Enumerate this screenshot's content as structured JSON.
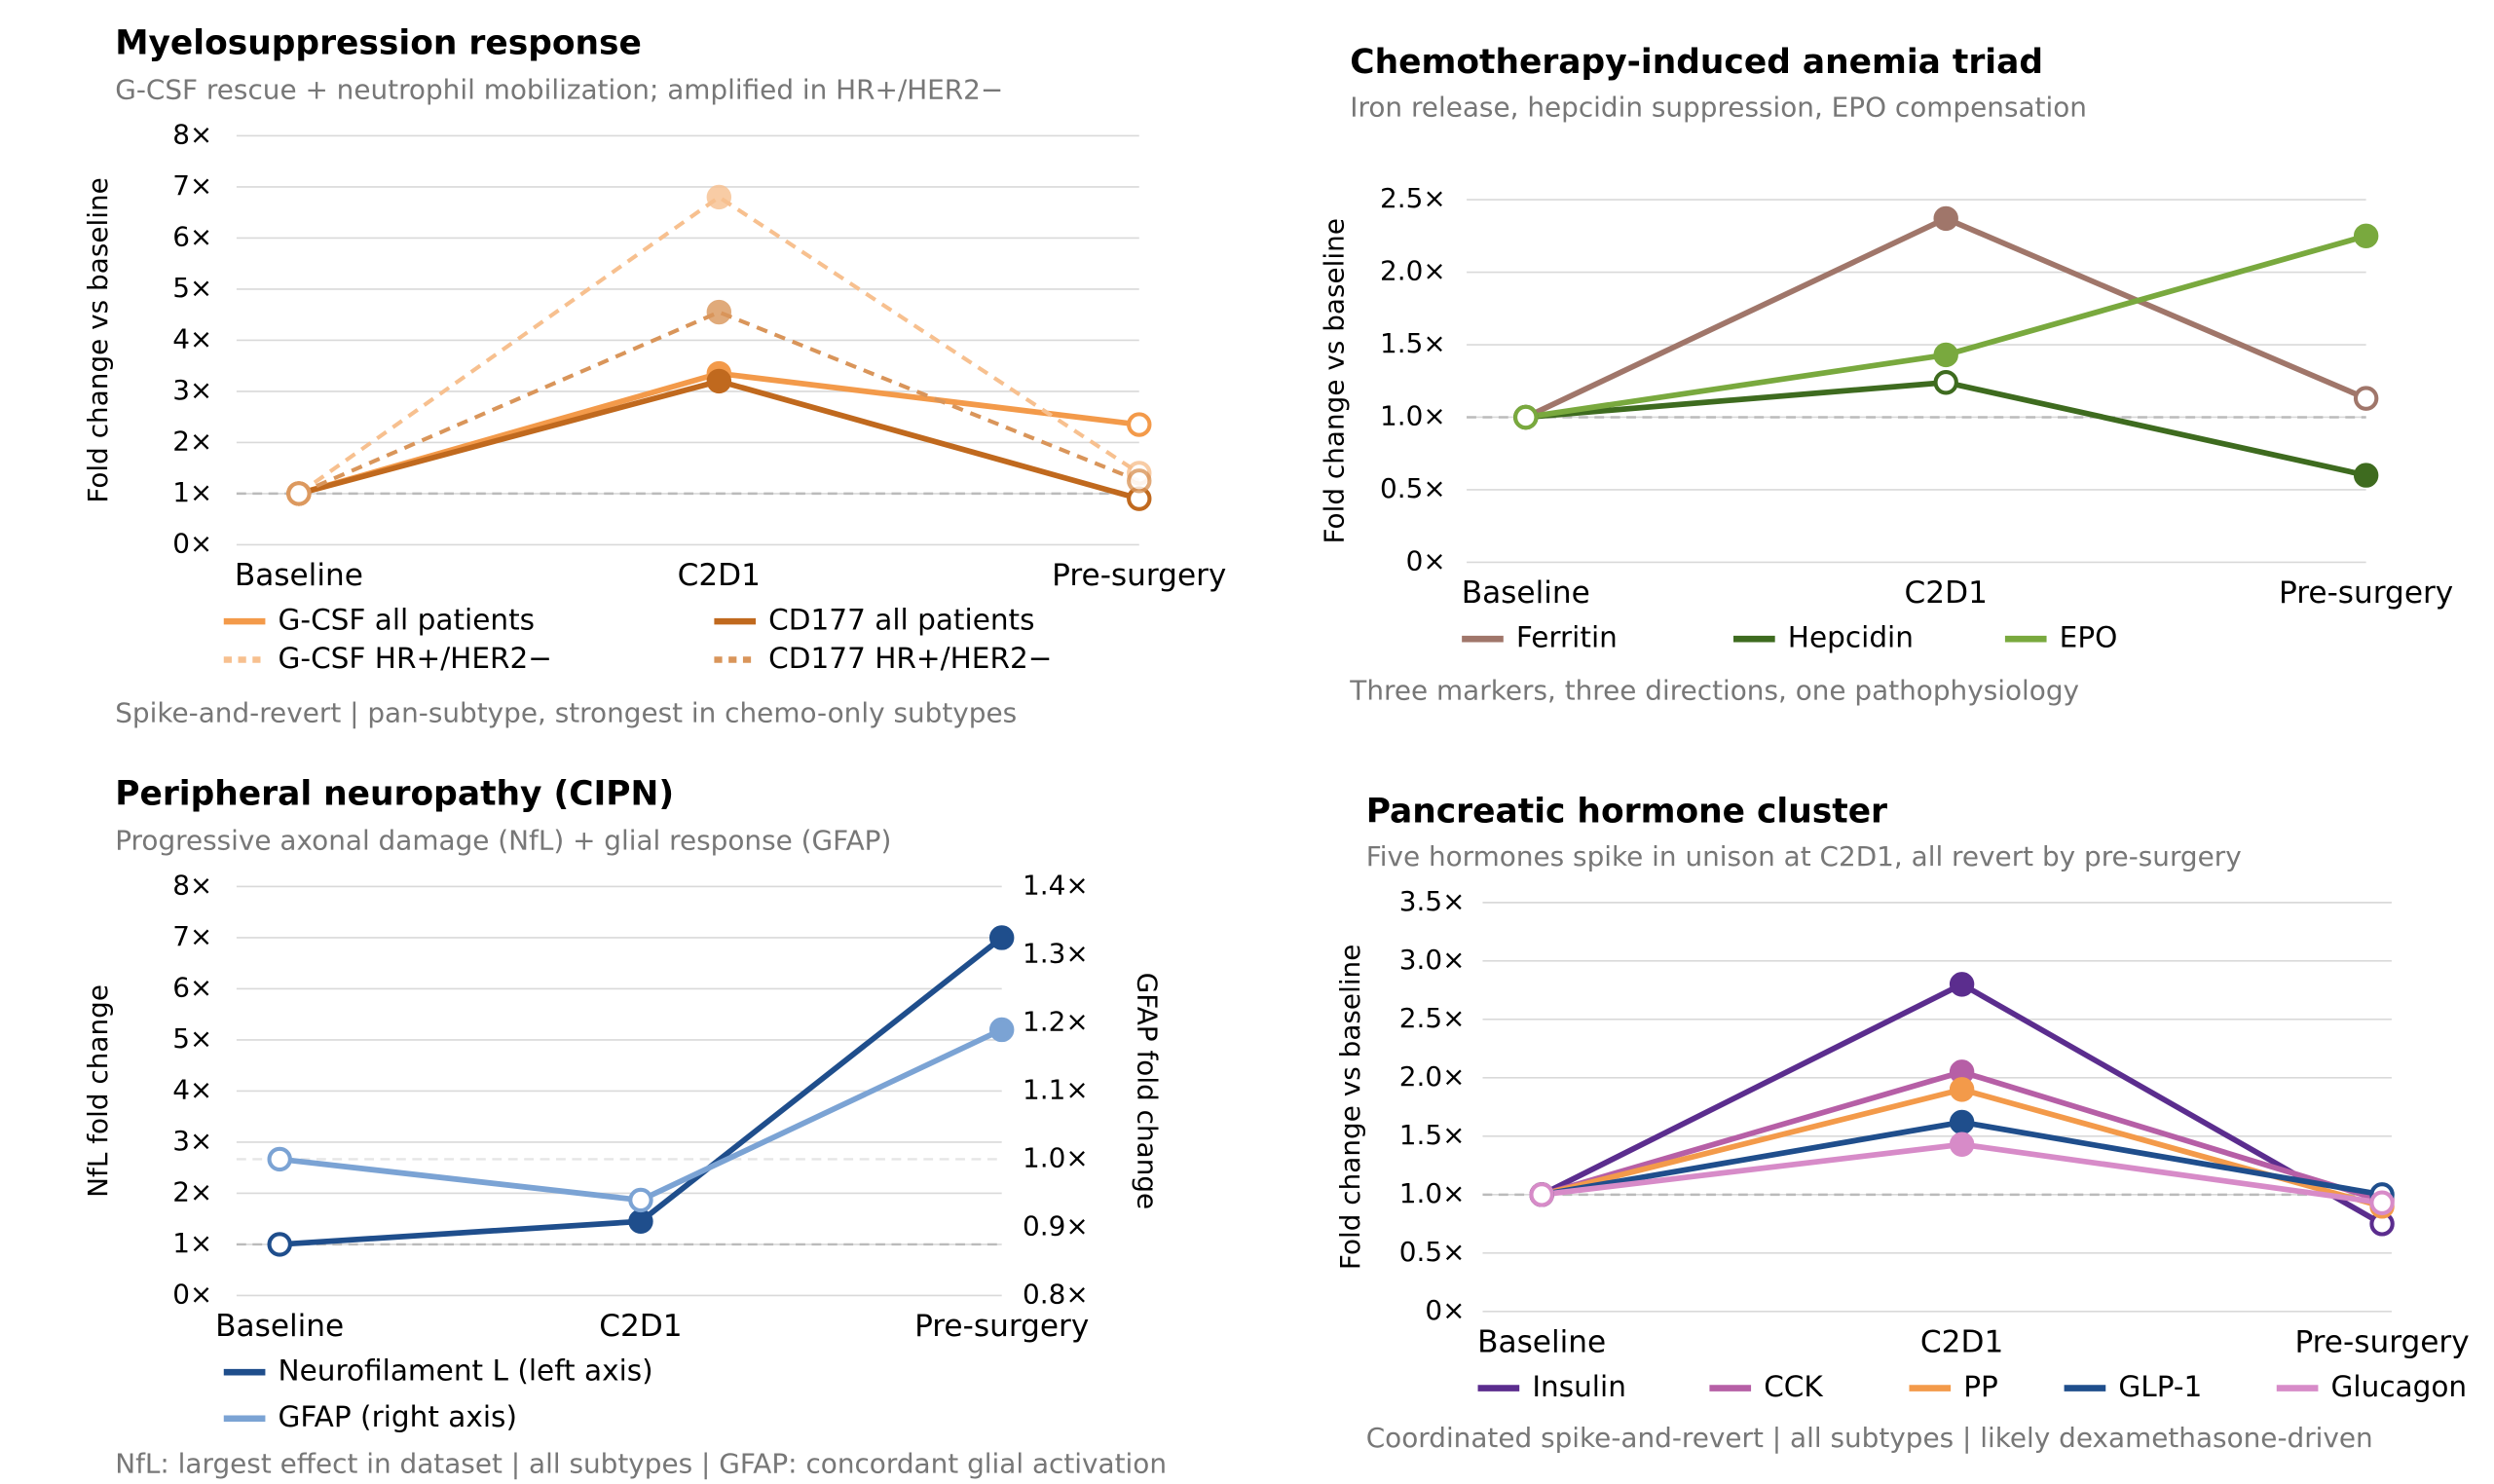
{
  "chart_data": [
    {
      "type": "line",
      "title": "Myelosuppression response",
      "subtitle": "G-CSF rescue + neutrophil mobilization; amplified in HR+/HER2−",
      "y_label": "Fold change vs baseline",
      "note": "Spike-and-revert | pan-subtype, strongest in chemo-only subtypes",
      "categories": [
        "Baseline",
        "C2D1",
        "Pre-surgery"
      ],
      "ylim": [
        0,
        8
      ],
      "yticks": [
        {
          "value": 0,
          "label": "0×"
        },
        {
          "value": 1,
          "label": "1×"
        },
        {
          "value": 2,
          "label": "2×"
        },
        {
          "value": 3,
          "label": "3×"
        },
        {
          "value": 4,
          "label": "4×"
        },
        {
          "value": 5,
          "label": "5×"
        },
        {
          "value": 6,
          "label": "6×"
        },
        {
          "value": 7,
          "label": "7×"
        },
        {
          "value": 8,
          "label": "8×"
        }
      ],
      "reference_line": 1,
      "grid": true,
      "series": [
        {
          "name": "G-CSF all patients",
          "color": "#f39a4a",
          "dashed": false,
          "values": [
            1,
            3.35,
            2.35
          ],
          "hollow": [
            true,
            false,
            true
          ]
        },
        {
          "name": "CD177 all patients",
          "color": "#c0691e",
          "dashed": false,
          "values": [
            1,
            3.2,
            0.9
          ],
          "hollow": [
            true,
            false,
            true
          ]
        },
        {
          "name": "G-CSF HR+/HER2−",
          "color": "#f7c08f",
          "dashed": true,
          "values": [
            1,
            6.8,
            1.4
          ],
          "hollow": [
            true,
            false,
            true
          ]
        },
        {
          "name": "CD177 HR+/HER2−",
          "color": "#d9955a",
          "dashed": true,
          "values": [
            1,
            4.55,
            1.25
          ],
          "hollow": [
            true,
            false,
            true
          ]
        }
      ]
    },
    {
      "type": "line",
      "title": "Chemotherapy-induced anemia triad",
      "subtitle": "Iron release, hepcidin suppression, EPO compensation",
      "y_label": "Fold change vs baseline",
      "note": "Three markers, three directions, one pathophysiology",
      "categories": [
        "Baseline",
        "C2D1",
        "Pre-surgery"
      ],
      "ylim": [
        0,
        2.5
      ],
      "yticks": [
        {
          "value": 0,
          "label": "0×"
        },
        {
          "value": 0.5,
          "label": "0.5×"
        },
        {
          "value": 1,
          "label": "1.0×"
        },
        {
          "value": 1.5,
          "label": "1.5×"
        },
        {
          "value": 2,
          "label": "2.0×"
        },
        {
          "value": 2.5,
          "label": "2.5×"
        }
      ],
      "reference_line": 1,
      "grid": true,
      "series": [
        {
          "name": "Ferritin",
          "color": "#a0766a",
          "dashed": false,
          "values": [
            1,
            2.37,
            1.13
          ],
          "hollow": [
            true,
            false,
            true
          ]
        },
        {
          "name": "Hepcidin",
          "color": "#3e6b1f",
          "dashed": false,
          "values": [
            1,
            1.24,
            0.6
          ],
          "hollow": [
            true,
            true,
            false
          ]
        },
        {
          "name": "EPO",
          "color": "#79a93e",
          "dashed": false,
          "values": [
            1,
            1.43,
            2.25
          ],
          "hollow": [
            true,
            false,
            false
          ]
        }
      ]
    },
    {
      "type": "line",
      "title": "Peripheral neuropathy (CIPN)",
      "subtitle": "Progressive axonal damage (NfL) + glial response (GFAP)",
      "y_label": "NfL fold change",
      "y2_label": "GFAP fold change",
      "note": "NfL: largest effect in dataset | all subtypes | GFAP: concordant glial activation",
      "categories": [
        "Baseline",
        "C2D1",
        "Pre-surgery"
      ],
      "ylim": [
        0,
        8
      ],
      "y2lim": [
        0.8,
        1.4
      ],
      "yticks": [
        {
          "value": 0,
          "label": "0×"
        },
        {
          "value": 1,
          "label": "1×"
        },
        {
          "value": 2,
          "label": "2×"
        },
        {
          "value": 3,
          "label": "3×"
        },
        {
          "value": 4,
          "label": "4×"
        },
        {
          "value": 5,
          "label": "5×"
        },
        {
          "value": 6,
          "label": "6×"
        },
        {
          "value": 7,
          "label": "7×"
        },
        {
          "value": 8,
          "label": "8×"
        }
      ],
      "y2ticks": [
        {
          "value": 0.8,
          "label": "0.8×"
        },
        {
          "value": 0.9,
          "label": "0.9×"
        },
        {
          "value": 1,
          "label": "1.0×"
        },
        {
          "value": 1.1,
          "label": "1.1×"
        },
        {
          "value": 1.2,
          "label": "1.2×"
        },
        {
          "value": 1.3,
          "label": "1.3×"
        },
        {
          "value": 1.4,
          "label": "1.4×"
        }
      ],
      "reference_line": 1,
      "reference_line_y2": 1,
      "grid": true,
      "series": [
        {
          "name": "Neurofilament L (left axis)",
          "color": "#1f4e8c",
          "dashed": false,
          "values": [
            1,
            1.45,
            7.0
          ],
          "hollow": [
            true,
            false,
            false
          ]
        },
        {
          "name": "GFAP (right axis)",
          "color": "#7ba3d4",
          "dashed": false,
          "axis": "y2",
          "values": [
            1.0,
            0.94,
            1.19
          ],
          "hollow": [
            true,
            true,
            false
          ]
        }
      ]
    },
    {
      "type": "line",
      "title": "Pancreatic hormone cluster",
      "subtitle": "Five hormones spike in unison at C2D1, all revert by pre-surgery",
      "y_label": "Fold change vs baseline",
      "note": "Coordinated spike-and-revert | all subtypes | likely dexamethasone-driven",
      "categories": [
        "Baseline",
        "C2D1",
        "Pre-surgery"
      ],
      "ylim": [
        0,
        3.5
      ],
      "yticks": [
        {
          "value": 0,
          "label": "0×"
        },
        {
          "value": 0.5,
          "label": "0.5×"
        },
        {
          "value": 1,
          "label": "1.0×"
        },
        {
          "value": 1.5,
          "label": "1.5×"
        },
        {
          "value": 2,
          "label": "2.0×"
        },
        {
          "value": 2.5,
          "label": "2.5×"
        },
        {
          "value": 3,
          "label": "3.0×"
        },
        {
          "value": 3.5,
          "label": "3.5×"
        }
      ],
      "reference_line": 1,
      "grid": true,
      "series": [
        {
          "name": "Insulin",
          "color": "#5b2d8e",
          "dashed": false,
          "values": [
            1,
            2.8,
            0.75
          ],
          "hollow": [
            true,
            false,
            true
          ]
        },
        {
          "name": "CCK",
          "color": "#b65fa6",
          "dashed": false,
          "values": [
            1,
            2.05,
            0.95
          ],
          "hollow": [
            true,
            false,
            true
          ]
        },
        {
          "name": "PP",
          "color": "#f39a4a",
          "dashed": false,
          "values": [
            1,
            1.9,
            0.9
          ],
          "hollow": [
            true,
            false,
            true
          ]
        },
        {
          "name": "GLP-1",
          "color": "#1f4e8c",
          "dashed": false,
          "values": [
            1,
            1.62,
            1.0
          ],
          "hollow": [
            true,
            false,
            true
          ]
        },
        {
          "name": "Glucagon",
          "color": "#d78bc8",
          "dashed": false,
          "values": [
            1,
            1.43,
            0.93
          ],
          "hollow": [
            true,
            false,
            true
          ]
        }
      ]
    }
  ]
}
